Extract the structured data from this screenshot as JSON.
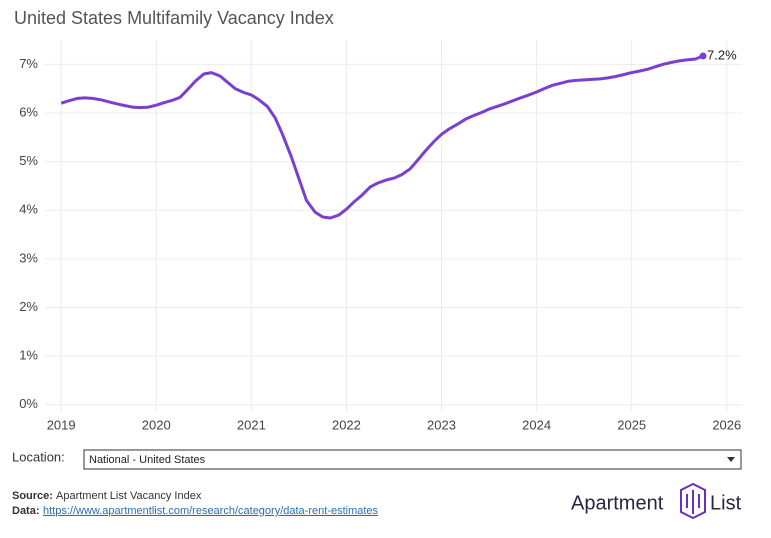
{
  "chart_data": {
    "type": "line",
    "title": "United States Multifamily Vacancy Index",
    "x": [
      2019.0,
      2019.08,
      2019.17,
      2019.25,
      2019.33,
      2019.42,
      2019.5,
      2019.58,
      2019.67,
      2019.75,
      2019.83,
      2019.92,
      2020.0,
      2020.08,
      2020.17,
      2020.25,
      2020.33,
      2020.42,
      2020.5,
      2020.58,
      2020.67,
      2020.75,
      2020.83,
      2020.92,
      2021.0,
      2021.08,
      2021.17,
      2021.25,
      2021.33,
      2021.42,
      2021.5,
      2021.58,
      2021.67,
      2021.75,
      2021.83,
      2021.92,
      2022.0,
      2022.08,
      2022.17,
      2022.25,
      2022.33,
      2022.42,
      2022.5,
      2022.58,
      2022.67,
      2022.75,
      2022.83,
      2022.92,
      2023.0,
      2023.08,
      2023.17,
      2023.25,
      2023.33,
      2023.42,
      2023.5,
      2023.58,
      2023.67,
      2023.75,
      2023.83,
      2023.92,
      2024.0,
      2024.08,
      2024.17,
      2024.25,
      2024.33,
      2024.42,
      2024.5,
      2024.58,
      2024.67,
      2024.75,
      2024.83,
      2024.92,
      2025.0,
      2025.08,
      2025.17,
      2025.25,
      2025.33,
      2025.42,
      2025.5,
      2025.58,
      2025.67,
      2025.75
    ],
    "series": [
      {
        "name": "United States",
        "color": "#7b3fcf",
        "values": [
          6.2,
          6.25,
          6.3,
          6.31,
          6.3,
          6.27,
          6.23,
          6.19,
          6.15,
          6.12,
          6.11,
          6.12,
          6.16,
          6.21,
          6.26,
          6.32,
          6.48,
          6.67,
          6.8,
          6.83,
          6.76,
          6.63,
          6.5,
          6.42,
          6.37,
          6.27,
          6.13,
          5.9,
          5.55,
          5.1,
          4.65,
          4.2,
          3.96,
          3.86,
          3.84,
          3.9,
          4.02,
          4.17,
          4.32,
          4.48,
          4.56,
          4.62,
          4.66,
          4.73,
          4.85,
          5.03,
          5.22,
          5.41,
          5.56,
          5.67,
          5.77,
          5.87,
          5.94,
          6.01,
          6.08,
          6.13,
          6.19,
          6.25,
          6.31,
          6.37,
          6.43,
          6.5,
          6.57,
          6.61,
          6.65,
          6.67,
          6.68,
          6.69,
          6.7,
          6.72,
          6.75,
          6.79,
          6.83,
          6.86,
          6.9,
          6.95,
          7.0,
          7.04,
          7.07,
          7.09,
          7.11,
          7.17
        ]
      }
    ],
    "end_label": "7.2%",
    "xlim": [
      2018.83,
      2026.16
    ],
    "xticks": [
      2019,
      2020,
      2021,
      2022,
      2023,
      2024,
      2025,
      2026
    ],
    "ylim": [
      -0.15,
      7.5
    ],
    "yticks": [
      {
        "value": 0,
        "label": "0%"
      },
      {
        "value": 1,
        "label": "1%"
      },
      {
        "value": 2,
        "label": "2%"
      },
      {
        "value": 3,
        "label": "3%"
      },
      {
        "value": 4,
        "label": "4%"
      },
      {
        "value": 5,
        "label": "5%"
      },
      {
        "value": 6,
        "label": "6%"
      },
      {
        "value": 7,
        "label": "7%"
      }
    ],
    "grid": true
  },
  "controls": {
    "location_label": "Location:",
    "location_value": "National - United States"
  },
  "footer": {
    "source_label": "Source:",
    "source_text": "Apartment List Vacancy Index",
    "data_label": "Data:",
    "data_link": "https://www.apartmentlist.com/research/category/data-rent-estimates"
  },
  "logo": {
    "left": "Apartment",
    "right": "List"
  }
}
